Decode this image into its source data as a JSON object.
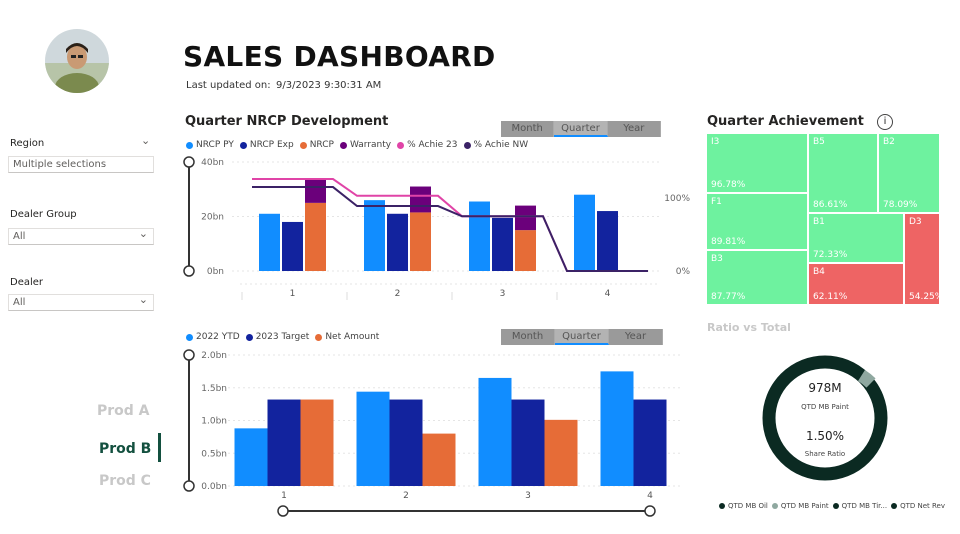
{
  "header": {
    "title": "SALES DASHBOARD",
    "updated_label": "Last updated on:",
    "updated_value": "9/3/2023 9:30:31 AM"
  },
  "filters": [
    {
      "label": "Region",
      "value": "Multiple selections"
    },
    {
      "label": "Dealer Group",
      "value": "All"
    },
    {
      "label": "Dealer",
      "value": "All"
    }
  ],
  "products": [
    {
      "label": "Prod A",
      "active": false
    },
    {
      "label": "Prod B",
      "active": true
    },
    {
      "label": "Prod C",
      "active": false
    }
  ],
  "toggle": {
    "options": [
      "Month",
      "Quarter",
      "Year"
    ],
    "selected": "Quarter"
  },
  "nrcp": {
    "title": "Quarter NRCP Development",
    "legend": [
      {
        "name": "NRCP PY",
        "color": "#118dff"
      },
      {
        "name": "NRCP Exp",
        "color": "#12239e"
      },
      {
        "name": "NRCP",
        "color": "#e66c37"
      },
      {
        "name": "Warranty",
        "color": "#6b007b"
      },
      {
        "name": "% Achie 23",
        "color": "#e044a7"
      },
      {
        "name": "% Achie NW",
        "color": "#3b2266"
      }
    ]
  },
  "sales": {
    "legend": [
      {
        "name": "2022 YTD",
        "color": "#118dff"
      },
      {
        "name": "2023 Target",
        "color": "#12239e"
      },
      {
        "name": "Net Amount",
        "color": "#e66c37"
      }
    ]
  },
  "quarter_achievement": {
    "title": "Quarter Achievement",
    "info_icon": "info-icon",
    "tiles": [
      {
        "name": "I3",
        "value": "96.78%",
        "color": "#6ef29f"
      },
      {
        "name": "B5",
        "value": "86.61%",
        "color": "#6ef29f"
      },
      {
        "name": "B2",
        "value": "78.09%",
        "color": "#6ef29f"
      },
      {
        "name": "F1",
        "value": "89.81%",
        "color": "#6ef29f"
      },
      {
        "name": "B1",
        "value": "72.33%",
        "color": "#6ef29f"
      },
      {
        "name": "D3",
        "value": "54.25%",
        "color": "#ee6464"
      },
      {
        "name": "B3",
        "value": "87.77%",
        "color": "#6ef29f"
      },
      {
        "name": "B4",
        "value": "62.11%",
        "color": "#ee6464"
      }
    ]
  },
  "ratio": {
    "title": "Ratio vs Total",
    "main_value": "978M",
    "main_label": "QTD MB Paint",
    "share_value": "1.50%",
    "share_label": "Share Ratio",
    "legend": [
      {
        "name": "QTD MB Oil",
        "color": "#0b2a22"
      },
      {
        "name": "QTD MB Paint",
        "color": "#8fa8a0"
      },
      {
        "name": "QTD MB Tir...",
        "color": "#0b2a22"
      },
      {
        "name": "QTD Net Rev",
        "color": "#0b2a22"
      }
    ]
  },
  "chart_data": [
    {
      "type": "bar",
      "title": "Quarter NRCP Development",
      "categories": [
        "1",
        "2",
        "3",
        "4"
      ],
      "y_ticks": [
        "0bn",
        "20bn",
        "40bn"
      ],
      "y2_ticks": [
        "0%",
        "100%"
      ],
      "ylim": [
        0,
        40
      ],
      "series": [
        {
          "name": "NRCP PY",
          "kind": "bar",
          "values": [
            21,
            26,
            25.5,
            28
          ]
        },
        {
          "name": "NRCP Exp",
          "kind": "bar",
          "values": [
            18,
            21,
            19.5,
            22
          ]
        },
        {
          "name": "NRCP",
          "kind": "stack",
          "values": [
            25,
            21.5,
            15,
            0
          ]
        },
        {
          "name": "Warranty",
          "kind": "stack",
          "values": [
            9,
            9.5,
            9,
            0
          ]
        },
        {
          "name": "% Achie 23",
          "kind": "line",
          "values": [
            126,
            103,
            75,
            0
          ]
        },
        {
          "name": "% Achie NW",
          "kind": "line",
          "values": [
            115,
            89,
            75,
            0
          ]
        }
      ]
    },
    {
      "type": "bar",
      "categories": [
        "1",
        "2",
        "3",
        "4"
      ],
      "y_ticks": [
        "0.0bn",
        "0.5bn",
        "1.0bn",
        "1.5bn",
        "2.0bn"
      ],
      "ylim": [
        0,
        2.0
      ],
      "series": [
        {
          "name": "2022 YTD",
          "values": [
            0.88,
            1.44,
            1.65,
            1.75
          ]
        },
        {
          "name": "2023 Target",
          "values": [
            1.32,
            1.32,
            1.32,
            1.32
          ]
        },
        {
          "name": "Net Amount",
          "values": [
            1.32,
            0.8,
            1.01,
            0
          ]
        }
      ]
    }
  ]
}
